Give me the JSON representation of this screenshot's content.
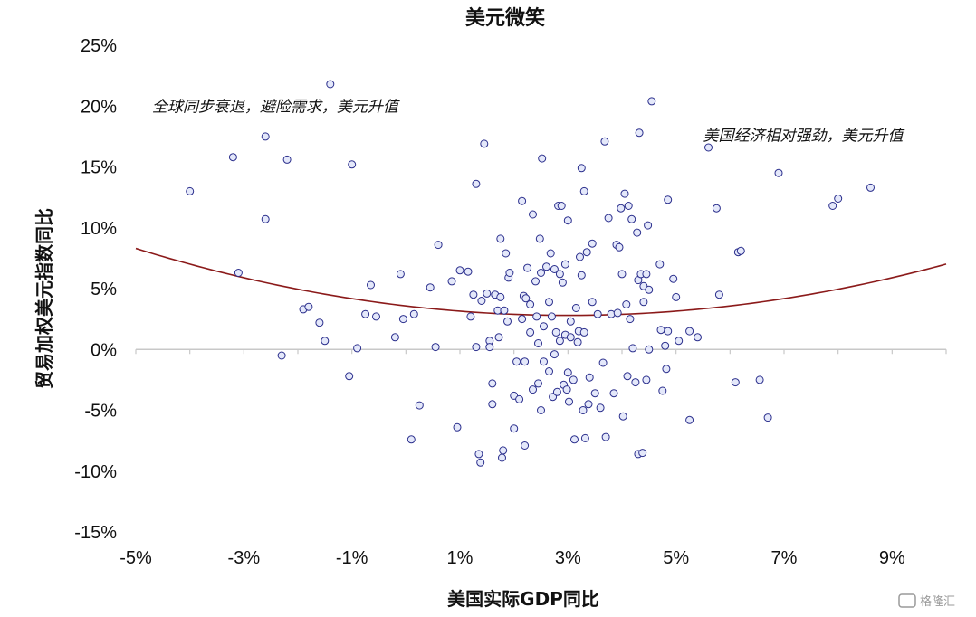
{
  "chart_data": {
    "type": "scatter",
    "title": "美元微笑",
    "xlabel": "美国实际GDP同比",
    "ylabel": "贸易加权美元指数同比",
    "xlim": [
      -5,
      10
    ],
    "ylim": [
      -15,
      25
    ],
    "x_ticks": [
      -5,
      -3,
      -1,
      1,
      3,
      5,
      7,
      9
    ],
    "x_tick_labels": [
      "-5%",
      "-3%",
      "-1%",
      "1%",
      "3%",
      "5%",
      "7%",
      "9%"
    ],
    "y_ticks": [
      25,
      20,
      15,
      10,
      5,
      0,
      -5,
      -10,
      -15
    ],
    "y_tick_labels": [
      "25%",
      "20%",
      "15%",
      "10%",
      "5%",
      "0%",
      "-5%",
      "-10%",
      "-15%"
    ],
    "grid": false,
    "annotations": [
      {
        "text": "全球同步衰退，避险需求，美元升值",
        "x": -4.7,
        "y": 20
      },
      {
        "text": "美国经济相对强劲，美元升值",
        "x": 5.5,
        "y": 17.6
      }
    ],
    "trend": {
      "type": "quadratic",
      "vertex_x": 3.0,
      "vertex_y": 2.8,
      "curvature": 0.086,
      "x_range": [
        -5,
        10
      ],
      "color": "#8b1a1a"
    },
    "point_color": "#2a2e8c",
    "series": [
      {
        "points": [
          [
            -4.0,
            13.0
          ],
          [
            -3.2,
            15.8
          ],
          [
            -3.1,
            6.3
          ],
          [
            -2.6,
            17.5
          ],
          [
            -2.6,
            10.7
          ],
          [
            -2.3,
            -0.5
          ],
          [
            -2.2,
            15.6
          ],
          [
            -1.9,
            3.3
          ],
          [
            -1.8,
            3.5
          ],
          [
            -1.6,
            2.2
          ],
          [
            -1.5,
            0.7
          ],
          [
            -1.4,
            21.8
          ],
          [
            -1.0,
            15.2
          ],
          [
            -0.9,
            0.1
          ],
          [
            -1.05,
            -2.2
          ],
          [
            -0.75,
            2.9
          ],
          [
            -0.65,
            5.3
          ],
          [
            -0.55,
            2.7
          ],
          [
            -0.2,
            1.0
          ],
          [
            -0.1,
            6.2
          ],
          [
            -0.05,
            2.5
          ],
          [
            0.1,
            -7.4
          ],
          [
            0.15,
            2.9
          ],
          [
            0.25,
            -4.6
          ],
          [
            0.45,
            5.1
          ],
          [
            0.55,
            0.2
          ],
          [
            0.6,
            8.6
          ],
          [
            0.85,
            5.6
          ],
          [
            0.95,
            -6.4
          ],
          [
            1.0,
            6.5
          ],
          [
            1.15,
            6.4
          ],
          [
            1.2,
            2.7
          ],
          [
            1.25,
            4.5
          ],
          [
            1.3,
            13.6
          ],
          [
            1.3,
            0.2
          ],
          [
            1.35,
            -8.6
          ],
          [
            1.38,
            -9.3
          ],
          [
            1.4,
            4.0
          ],
          [
            1.45,
            16.9
          ],
          [
            1.5,
            4.6
          ],
          [
            1.55,
            0.7
          ],
          [
            1.55,
            0.2
          ],
          [
            1.6,
            -4.5
          ],
          [
            1.6,
            -2.8
          ],
          [
            1.65,
            4.5
          ],
          [
            1.7,
            3.2
          ],
          [
            1.72,
            1.0
          ],
          [
            1.75,
            9.1
          ],
          [
            1.75,
            4.3
          ],
          [
            1.78,
            -8.9
          ],
          [
            1.8,
            -8.3
          ],
          [
            1.82,
            3.2
          ],
          [
            1.85,
            7.9
          ],
          [
            1.88,
            2.3
          ],
          [
            1.9,
            5.9
          ],
          [
            1.92,
            6.3
          ],
          [
            2.0,
            -3.8
          ],
          [
            2.0,
            -6.5
          ],
          [
            2.05,
            -1.0
          ],
          [
            2.1,
            -4.1
          ],
          [
            2.15,
            2.5
          ],
          [
            2.15,
            12.2
          ],
          [
            2.18,
            4.4
          ],
          [
            2.2,
            -7.9
          ],
          [
            2.2,
            -1.0
          ],
          [
            2.22,
            4.2
          ],
          [
            2.25,
            6.7
          ],
          [
            2.3,
            3.7
          ],
          [
            2.3,
            1.4
          ],
          [
            2.35,
            -3.3
          ],
          [
            2.35,
            11.1
          ],
          [
            2.4,
            5.6
          ],
          [
            2.42,
            2.7
          ],
          [
            2.45,
            0.5
          ],
          [
            2.45,
            -2.8
          ],
          [
            2.48,
            9.1
          ],
          [
            2.5,
            -5.0
          ],
          [
            2.5,
            6.3
          ],
          [
            2.52,
            15.7
          ],
          [
            2.55,
            -1.0
          ],
          [
            2.55,
            1.9
          ],
          [
            2.6,
            6.8
          ],
          [
            2.65,
            -1.8
          ],
          [
            2.65,
            3.9
          ],
          [
            2.68,
            7.9
          ],
          [
            2.7,
            2.7
          ],
          [
            2.72,
            -3.9
          ],
          [
            2.75,
            -0.4
          ],
          [
            2.75,
            6.6
          ],
          [
            2.78,
            1.4
          ],
          [
            2.8,
            -3.5
          ],
          [
            2.82,
            11.8
          ],
          [
            2.85,
            0.7
          ],
          [
            2.85,
            6.2
          ],
          [
            2.88,
            11.8
          ],
          [
            2.9,
            5.5
          ],
          [
            2.92,
            -2.9
          ],
          [
            2.95,
            7.0
          ],
          [
            2.95,
            1.2
          ],
          [
            2.98,
            -3.3
          ],
          [
            3.0,
            10.6
          ],
          [
            3.0,
            -1.9
          ],
          [
            3.02,
            -4.3
          ],
          [
            3.05,
            1.0
          ],
          [
            3.05,
            2.3
          ],
          [
            3.1,
            -2.5
          ],
          [
            3.12,
            -7.4
          ],
          [
            3.15,
            3.4
          ],
          [
            3.18,
            0.6
          ],
          [
            3.2,
            1.5
          ],
          [
            3.22,
            7.6
          ],
          [
            3.25,
            6.1
          ],
          [
            3.25,
            14.9
          ],
          [
            3.28,
            -5.0
          ],
          [
            3.3,
            1.4
          ],
          [
            3.3,
            13.0
          ],
          [
            3.32,
            -7.3
          ],
          [
            3.35,
            8.0
          ],
          [
            3.38,
            -4.5
          ],
          [
            3.4,
            -2.3
          ],
          [
            3.45,
            3.9
          ],
          [
            3.45,
            8.7
          ],
          [
            3.5,
            -3.6
          ],
          [
            3.55,
            2.9
          ],
          [
            3.6,
            -4.8
          ],
          [
            3.65,
            -1.1
          ],
          [
            3.68,
            17.1
          ],
          [
            3.7,
            -7.2
          ],
          [
            3.75,
            10.8
          ],
          [
            3.8,
            2.9
          ],
          [
            3.85,
            -3.6
          ],
          [
            3.9,
            8.6
          ],
          [
            3.92,
            3.0
          ],
          [
            3.95,
            8.4
          ],
          [
            3.98,
            11.6
          ],
          [
            4.0,
            6.2
          ],
          [
            4.02,
            -5.5
          ],
          [
            4.05,
            12.8
          ],
          [
            4.08,
            3.7
          ],
          [
            4.1,
            -2.2
          ],
          [
            4.12,
            11.8
          ],
          [
            4.15,
            2.5
          ],
          [
            4.18,
            10.7
          ],
          [
            4.2,
            0.1
          ],
          [
            4.25,
            -2.7
          ],
          [
            4.28,
            9.6
          ],
          [
            4.3,
            5.7
          ],
          [
            4.3,
            -8.6
          ],
          [
            4.32,
            17.8
          ],
          [
            4.35,
            6.2
          ],
          [
            4.38,
            -8.5
          ],
          [
            4.4,
            5.2
          ],
          [
            4.4,
            3.9
          ],
          [
            4.45,
            6.2
          ],
          [
            4.45,
            -2.5
          ],
          [
            4.48,
            10.2
          ],
          [
            4.5,
            4.9
          ],
          [
            4.5,
            0.0
          ],
          [
            4.55,
            20.4
          ],
          [
            4.7,
            7.0
          ],
          [
            4.72,
            1.6
          ],
          [
            4.75,
            -3.4
          ],
          [
            4.8,
            0.3
          ],
          [
            4.82,
            -1.6
          ],
          [
            4.85,
            1.5
          ],
          [
            4.85,
            12.3
          ],
          [
            4.95,
            5.8
          ],
          [
            5.0,
            4.3
          ],
          [
            5.05,
            0.7
          ],
          [
            5.25,
            -5.8
          ],
          [
            5.25,
            1.5
          ],
          [
            5.4,
            1.0
          ],
          [
            5.6,
            16.6
          ],
          [
            5.75,
            11.6
          ],
          [
            5.8,
            4.5
          ],
          [
            6.1,
            -2.7
          ],
          [
            6.15,
            8.0
          ],
          [
            6.2,
            8.1
          ],
          [
            6.55,
            -2.5
          ],
          [
            6.7,
            -5.6
          ],
          [
            6.9,
            14.5
          ],
          [
            7.9,
            11.8
          ],
          [
            8.0,
            12.4
          ],
          [
            8.6,
            13.3
          ]
        ]
      }
    ]
  },
  "watermark": {
    "text": "格隆汇"
  }
}
